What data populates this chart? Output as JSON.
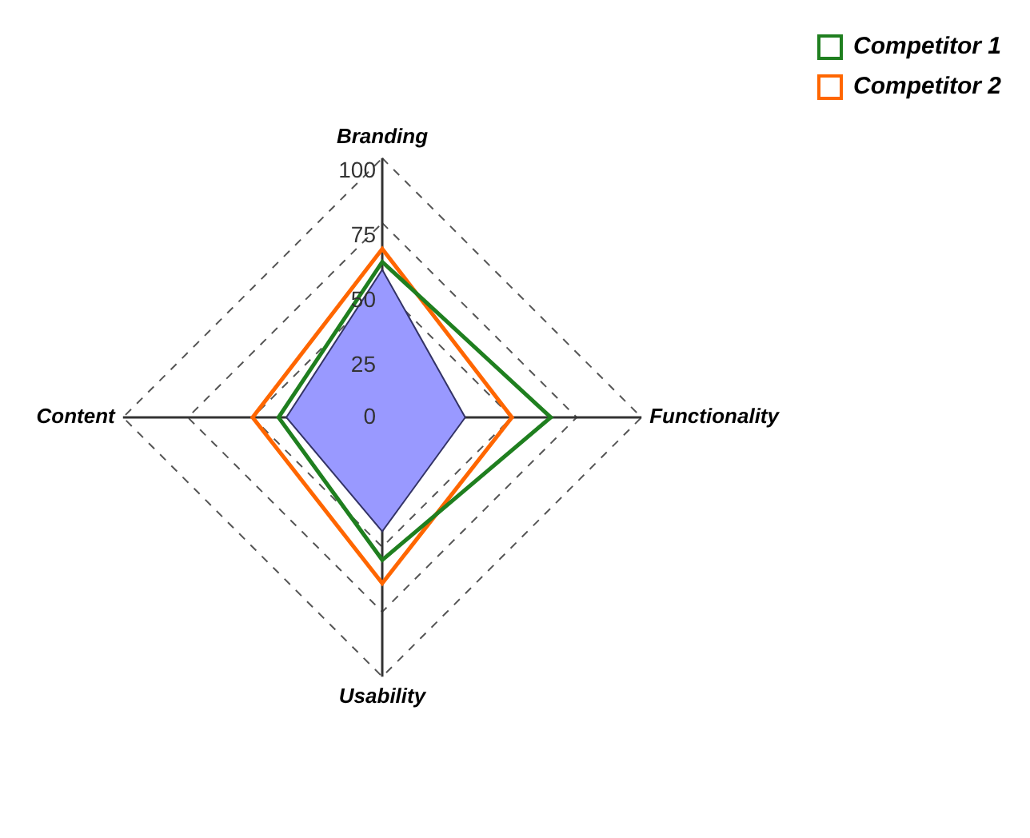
{
  "chart_data": {
    "type": "radar",
    "categories": [
      "Branding",
      "Functionality",
      "Usability",
      "Content"
    ],
    "ylim": [
      0,
      100
    ],
    "yticks": [
      0,
      25,
      50,
      75,
      100
    ],
    "grid": true,
    "legend": "top right",
    "series": [
      {
        "color": "#9999ff",
        "values": [
          57,
          32,
          44,
          37
        ]
      },
      {
        "name": "Competitor 1",
        "color": "#1f7f1f",
        "values": [
          60,
          65,
          55,
          40
        ]
      },
      {
        "name": "Competitor 2",
        "color": "#ff6600",
        "values": [
          65,
          50,
          64,
          50
        ]
      }
    ]
  }
}
